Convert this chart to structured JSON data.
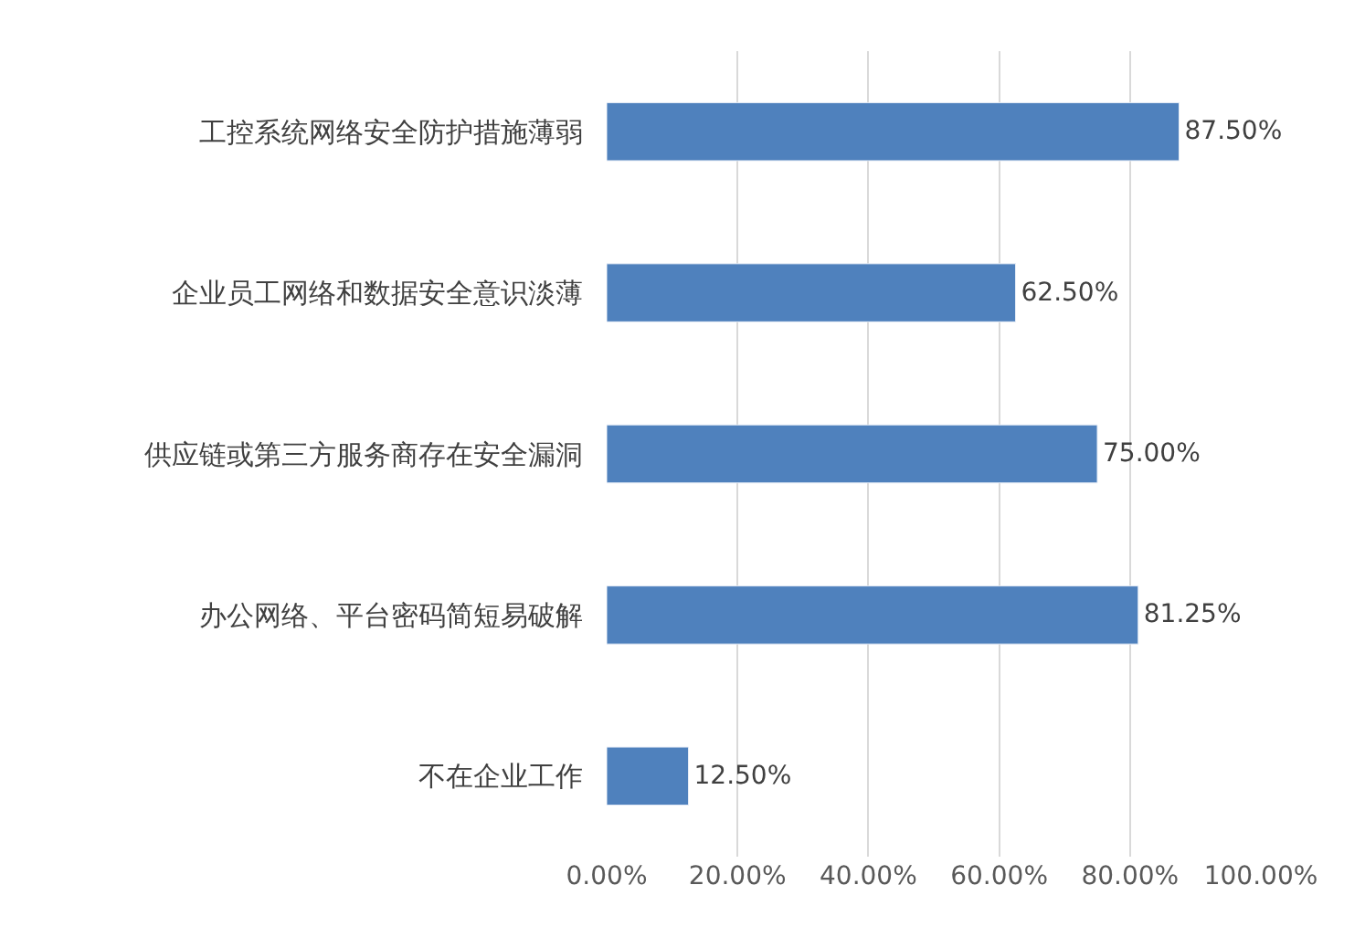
{
  "chart_data": {
    "type": "bar",
    "orientation": "horizontal",
    "categories": [
      "工控系统网络安全防护措施薄弱",
      "企业员工网络和数据安全意识淡薄",
      "供应链或第三方服务商存在安全漏洞",
      "办公网络、平台密码简短易破解",
      "不在企业工作"
    ],
    "values": [
      87.5,
      62.5,
      75.0,
      81.25,
      12.5
    ],
    "value_labels": [
      "87.50%",
      "62.50%",
      "75.00%",
      "81.25%",
      "12.50%"
    ],
    "color": "#4f81bd",
    "xlim": [
      0,
      100
    ],
    "xticks": [
      {
        "value": 0,
        "label": "0.00%"
      },
      {
        "value": 20,
        "label": "20.00%"
      },
      {
        "value": 40,
        "label": "40.00%"
      },
      {
        "value": 60,
        "label": "60.00%"
      },
      {
        "value": 80,
        "label": "80.00%"
      },
      {
        "value": 100,
        "label": "100.00%"
      }
    ],
    "grid": "x"
  }
}
